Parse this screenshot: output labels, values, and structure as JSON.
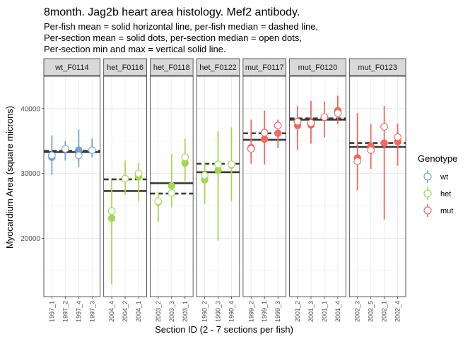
{
  "chart_data": {
    "type": "scatter",
    "title": "8month. Jag2b heart area histology. Mef2 antibody.",
    "subtitle": [
      "Per-fish mean = solid horizontal line, per-fish median = dashed line,",
      "Per-section mean = solid dots, per-section median = open dots,",
      "Per-section min and max = vertical solid line."
    ],
    "xlabel": "Section ID (2 - 7 sections per fish)",
    "ylabel": "Myocardium Area (square microns)",
    "ylim": [
      11000,
      45000
    ],
    "yticks": [
      20000,
      30000,
      40000
    ],
    "ytick_labels": [
      "20000",
      "30000",
      "40000"
    ],
    "grid": true,
    "legend": {
      "title": "Genotype",
      "position": "right",
      "entries": [
        {
          "label": "wt",
          "color": "#6FA3D6"
        },
        {
          "label": "het",
          "color": "#A6D55A"
        },
        {
          "label": "mut",
          "color": "#F06A60"
        }
      ]
    },
    "facets": [
      {
        "name": "wt_F0114",
        "genotype": "wt",
        "fish_mean": 33300,
        "fish_median": 33500,
        "sections": [
          {
            "id": "1997_1",
            "mean": 32500,
            "median": 32800,
            "min": 29800,
            "max": 35900
          },
          {
            "id": "1997_2",
            "mean": 33800,
            "median": 33800,
            "min": 32000,
            "max": 35000
          },
          {
            "id": "1997_4",
            "mean": 33600,
            "median": 32800,
            "min": 31000,
            "max": 36800
          },
          {
            "id": "1997_3",
            "mean": 33600,
            "median": 33600,
            "min": 32500,
            "max": 35400
          }
        ]
      },
      {
        "name": "het_F0116",
        "genotype": "het",
        "fish_mean": 27300,
        "fish_median": 29100,
        "sections": [
          {
            "id": "2004_4",
            "mean": 23100,
            "median": 24200,
            "min": 12900,
            "max": 29000
          },
          {
            "id": "2004_2",
            "mean": 29200,
            "median": 29200,
            "min": 26700,
            "max": 32000
          },
          {
            "id": "2004_1",
            "mean": 29500,
            "median": 30000,
            "min": 25700,
            "max": 31600
          }
        ]
      },
      {
        "name": "het_F0118",
        "genotype": "het",
        "fish_mean": 28500,
        "fish_median": 26900,
        "sections": [
          {
            "id": "2003_2",
            "mean": 25600,
            "median": 25700,
            "min": 22500,
            "max": 27100
          },
          {
            "id": "2003_3",
            "mean": 28100,
            "median": 27000,
            "min": 24800,
            "max": 33000
          },
          {
            "id": "2003_1",
            "mean": 31600,
            "median": 32500,
            "min": 28800,
            "max": 35400
          }
        ]
      },
      {
        "name": "het_F0122",
        "genotype": "het",
        "fish_mean": 30200,
        "fish_median": 31500,
        "sections": [
          {
            "id": "1990_2",
            "mean": 29000,
            "median": 29700,
            "min": 25300,
            "max": 31600
          },
          {
            "id": "1990_3",
            "mean": 30500,
            "median": 31400,
            "min": 19600,
            "max": 36500
          },
          {
            "id": "1990_4",
            "mean": 31300,
            "median": 31400,
            "min": 25700,
            "max": 37100
          }
        ]
      },
      {
        "name": "mut_F0117",
        "genotype": "mut",
        "fish_mean": 35200,
        "fish_median": 36200,
        "sections": [
          {
            "id": "1999_2",
            "mean": 34000,
            "median": 33800,
            "min": 31500,
            "max": 38300
          },
          {
            "id": "1999_1",
            "mean": 35300,
            "median": 36300,
            "min": 31400,
            "max": 39700
          },
          {
            "id": "1999_3",
            "mean": 36200,
            "median": 37400,
            "min": 33900,
            "max": 38300
          }
        ]
      },
      {
        "name": "mut_F0120",
        "genotype": "mut",
        "fish_mean": 38300,
        "fish_median": 38500,
        "sections": [
          {
            "id": "2001_2",
            "mean": 37400,
            "median": 38000,
            "min": 33600,
            "max": 40400
          },
          {
            "id": "2001_3",
            "mean": 37500,
            "median": 37800,
            "min": 34600,
            "max": 41200
          },
          {
            "id": "2001_1",
            "mean": 38700,
            "median": 38700,
            "min": 35600,
            "max": 41100
          },
          {
            "id": "2001_4",
            "mean": 39700,
            "median": 39300,
            "min": 37600,
            "max": 42000
          }
        ]
      },
      {
        "name": "mut_F0123",
        "genotype": "mut",
        "fish_mean": 34100,
        "fish_median": 34700,
        "sections": [
          {
            "id": "2002_3",
            "mean": 32400,
            "median": 31900,
            "min": 27400,
            "max": 39300
          },
          {
            "id": "2002_5",
            "mean": 34200,
            "median": 33600,
            "min": 30700,
            "max": 37600
          },
          {
            "id": "2002_1",
            "mean": 34700,
            "median": 37200,
            "min": 22900,
            "max": 40400
          },
          {
            "id": "2002_4",
            "mean": 34900,
            "median": 35600,
            "min": 31200,
            "max": 37700
          }
        ]
      }
    ]
  }
}
